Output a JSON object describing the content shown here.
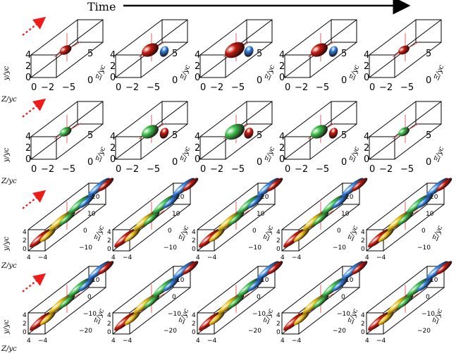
{
  "title": "Time",
  "axis_labels": {
    "y": "y/yᴄ",
    "z": "Z/yᴄ",
    "xi": "Ξ/yᴄ"
  },
  "rows": [
    {
      "name": "row-1",
      "style": "small",
      "y_ticks": [
        "4",
        "2",
        "0"
      ],
      "z_ticks": [
        "0",
        "−2"
      ],
      "xi_ticks": [
        "5",
        "0"
      ],
      "x_tick_far": "−5",
      "palette": [
        "#c41a0c",
        "#e0471a",
        "#2f7fd9"
      ]
    },
    {
      "name": "row-2",
      "style": "small",
      "y_ticks": [
        "4",
        "2",
        "0"
      ],
      "z_ticks": [
        "0",
        "−2"
      ],
      "xi_ticks": [
        "5",
        "0"
      ],
      "x_tick_far": "−5",
      "palette": [
        "#3cbf4a",
        "#9fdc2a",
        "#c41a0c"
      ]
    },
    {
      "name": "row-3",
      "style": "long",
      "y_ticks": [
        "4",
        "2",
        "0"
      ],
      "z_ticks": [
        "4",
        "−4"
      ],
      "xi_ticks": [
        "20",
        "10",
        "0",
        "−10"
      ],
      "palette": [
        "#c41a0c",
        "#e8c21a",
        "#3cbf4a",
        "#2f7fd9"
      ]
    },
    {
      "name": "row-4",
      "style": "long",
      "y_ticks": [
        "4",
        "2",
        "0"
      ],
      "z_ticks": [
        "4",
        "−4"
      ],
      "xi_ticks": [
        "10",
        "0",
        "−10",
        "−20"
      ],
      "palette": [
        "#c41a0c",
        "#e8c21a",
        "#3cbf4a",
        "#2f7fd9"
      ]
    }
  ],
  "columns": 5
}
